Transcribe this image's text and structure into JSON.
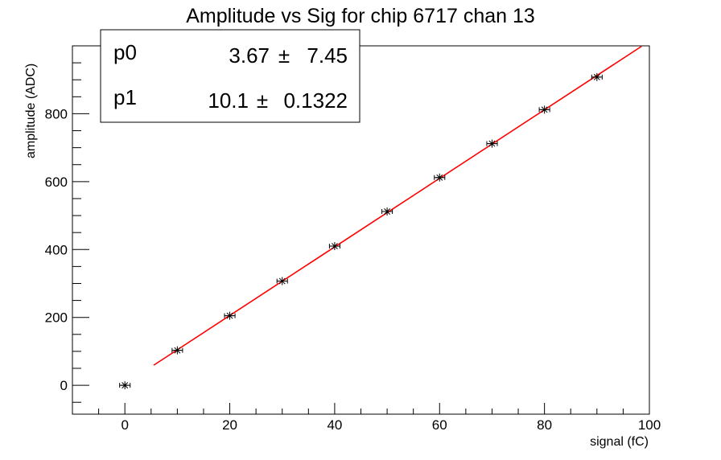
{
  "chart_data": {
    "type": "scatter",
    "title": "Amplitude vs Sig for chip 6717 chan 13",
    "xlabel": "signal (fC)",
    "ylabel": "amplitude (ADC)",
    "xlim": [
      -10,
      100
    ],
    "ylim": [
      -85,
      1000
    ],
    "xticks": [
      0,
      20,
      40,
      60,
      80,
      100
    ],
    "yticks": [
      0,
      200,
      400,
      600,
      800
    ],
    "grid": false,
    "series": [
      {
        "marker": "star",
        "color": "#000000",
        "x": [
          0,
          10,
          20,
          30,
          40,
          50,
          60,
          70,
          80,
          90
        ],
        "y": [
          0,
          103,
          205,
          307,
          410,
          512,
          612,
          712,
          812,
          908
        ],
        "xerr": 1
      }
    ],
    "fit": {
      "type": "linear",
      "color": "#ff0000",
      "x_range": [
        5.5,
        98.5
      ],
      "p0": 3.67,
      "p1": 10.1
    },
    "stats_box": {
      "rows": [
        {
          "name": "p0",
          "value": "3.67",
          "pm": "±",
          "error": " 7.45"
        },
        {
          "name": "p1",
          "value": "10.1",
          "pm": "±",
          "error": "0.1322"
        }
      ]
    }
  }
}
